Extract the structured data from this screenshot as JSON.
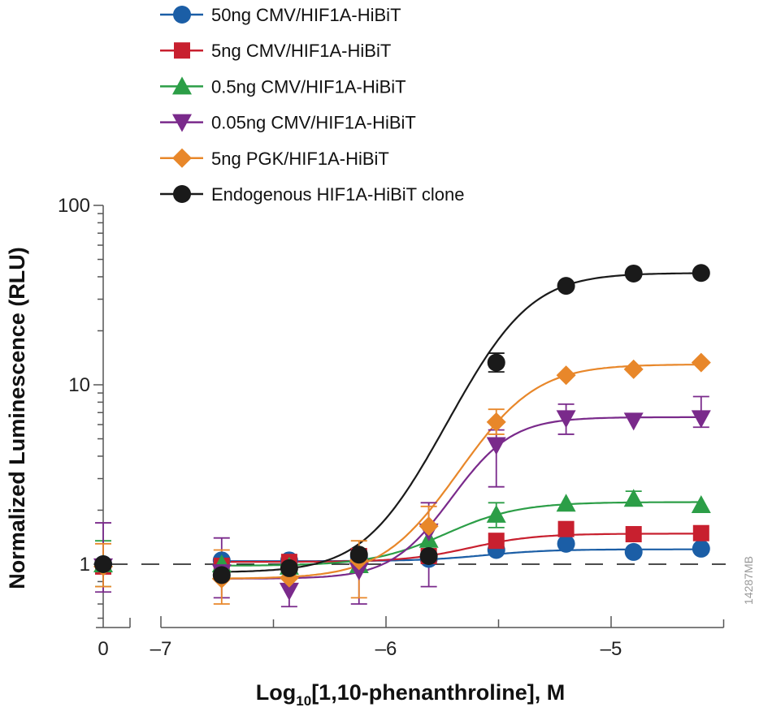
{
  "chart_data": {
    "type": "scatter",
    "xlabel_parts": [
      "Log",
      "10",
      "[1,10-phenanthroline], M"
    ],
    "ylabel": "Normalized Luminescence (RLU)",
    "yscale": "log",
    "ylim": [
      0.5,
      100
    ],
    "xlim": [
      -7,
      -4.5
    ],
    "x_break_tick": {
      "value": 0,
      "label": "0"
    },
    "x_ticks": [
      {
        "value": -7,
        "label": "–7"
      },
      {
        "value": -6,
        "label": "–6"
      },
      {
        "value": -5,
        "label": "–5"
      }
    ],
    "y_ticks": [
      {
        "value": 1,
        "label": "1"
      },
      {
        "value": 10,
        "label": "10"
      },
      {
        "value": 100,
        "label": "100"
      }
    ],
    "reference_line": {
      "y": 1,
      "style": "dashed"
    },
    "legend_placement": "top",
    "x": [
      -6.73,
      -6.43,
      -6.12,
      -5.81,
      -5.51,
      -5.2,
      -4.9,
      -4.6
    ],
    "series": [
      {
        "name": "50ng CMV/HIF1A-HiBiT",
        "color": "#1b5ea6",
        "marker": "circle",
        "x0_value": 1.0,
        "values": [
          1.05,
          1.05,
          1.1,
          1.07,
          1.2,
          1.3,
          1.17,
          1.22
        ]
      },
      {
        "name": "5ng CMV/HIF1A-HiBiT",
        "color": "#c8202f",
        "marker": "square",
        "x0_value": 0.97,
        "values": [
          0.98,
          1.03,
          1.11,
          1.11,
          1.35,
          1.57,
          1.47,
          1.49
        ]
      },
      {
        "name": "0.5ng CMV/HIF1A-HiBiT",
        "color": "#2c9e47",
        "marker": "triangle-up",
        "x0_value": 1.0,
        "values": [
          1.0,
          0.97,
          0.99,
          1.37,
          1.89,
          2.18,
          2.32,
          2.14
        ]
      },
      {
        "name": "0.05ng CMV/HIF1A-HiBiT",
        "color": "#7a2a8b",
        "marker": "triangle-down",
        "x0_value": 0.97,
        "values": [
          0.9,
          0.71,
          0.92,
          1.52,
          4.6,
          6.5,
          6.3,
          6.5
        ]
      },
      {
        "name": "5ng PGK/HIF1A-HiBiT",
        "color": "#e8872a",
        "marker": "diamond",
        "x0_value": 0.97,
        "values": [
          0.83,
          0.84,
          1.05,
          1.63,
          6.2,
          11.3,
          12.2,
          13.3
        ]
      },
      {
        "name": "Endogenous HIF1A-HiBiT clone",
        "color": "#1a1a1a",
        "marker": "circle",
        "x0_value": 1.0,
        "values": [
          0.87,
          0.95,
          1.13,
          1.11,
          13.3,
          35.6,
          41.7,
          42.0
        ]
      }
    ],
    "error_bars": {
      "0.05ng CMV/HIF1A-HiBiT": {
        "x0": [
          0.7,
          1.7
        ],
        "-6.73": [
          0.65,
          1.4
        ],
        "-6.43": [
          0.58,
          0.85
        ],
        "-6.12": [
          0.6,
          1.2
        ],
        "-5.81": [
          0.75,
          2.2
        ],
        "-5.51": [
          2.7,
          5.6
        ],
        "-5.2": [
          5.3,
          7.8
        ],
        "-4.6": [
          5.8,
          8.6
        ]
      },
      "5ng PGK/HIF1A-HiBiT": {
        "x0": [
          0.75,
          1.3
        ],
        "-6.73": [
          0.6,
          1.2
        ],
        "-6.12": [
          0.65,
          1.35
        ],
        "-5.81": [
          1.2,
          2.1
        ],
        "-5.51": [
          5.3,
          7.3
        ]
      },
      "Endogenous HIF1A-HiBiT clone": {
        "-5.51": [
          11.8,
          15.0
        ]
      },
      "0.5ng CMV/HIF1A-HiBiT": {
        "x0": [
          0.75,
          1.35
        ],
        "-5.51": [
          1.6,
          2.2
        ],
        "-4.9": [
          2.15,
          2.55
        ]
      }
    }
  },
  "watermark": "14287MB"
}
